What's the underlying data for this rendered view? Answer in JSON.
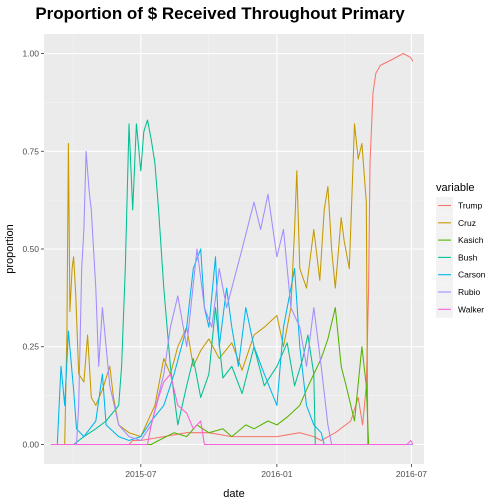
{
  "chart_data": {
    "type": "line",
    "title": "Proportion of $ Received Throughout Primary",
    "xlabel": "date",
    "ylabel": "proportion",
    "x_domain": [
      "2015-02-20",
      "2016-07-18"
    ],
    "ylim": [
      -0.05,
      1.05
    ],
    "x_ticks": [
      {
        "date": "2015-07-01",
        "label": "2015-07"
      },
      {
        "date": "2016-01-01",
        "label": "2016-01"
      },
      {
        "date": "2016-07-01",
        "label": "2016-07"
      }
    ],
    "x_minor": [
      "2015-04-01",
      "2015-10-01",
      "2016-04-01"
    ],
    "y_ticks": [
      {
        "value": 0,
        "label": "0.00"
      },
      {
        "value": 0.25,
        "label": "0.25"
      },
      {
        "value": 0.5,
        "label": "0.50"
      },
      {
        "value": 0.75,
        "label": "0.75"
      },
      {
        "value": 1,
        "label": "1.00"
      }
    ],
    "grid": true,
    "legend_title": "variable",
    "legend_position": "right",
    "series": [
      {
        "name": "Trump",
        "color": "#F8766D",
        "points": [
          [
            "2015-03-01",
            0
          ],
          [
            "2015-06-15",
            0
          ],
          [
            "2015-06-20",
            0.01
          ],
          [
            "2015-07-01",
            0.01
          ],
          [
            "2015-08-01",
            0.02
          ],
          [
            "2015-09-01",
            0.03
          ],
          [
            "2015-10-01",
            0.03
          ],
          [
            "2015-11-01",
            0.02
          ],
          [
            "2015-12-01",
            0.02
          ],
          [
            "2016-01-01",
            0.02
          ],
          [
            "2016-02-01",
            0.03
          ],
          [
            "2016-02-20",
            0.02
          ],
          [
            "2016-03-01",
            0.01
          ],
          [
            "2016-03-20",
            0.03
          ],
          [
            "2016-04-10",
            0.06
          ],
          [
            "2016-04-20",
            0.12
          ],
          [
            "2016-04-26",
            0.05
          ],
          [
            "2016-05-01",
            0.15
          ],
          [
            "2016-05-04",
            0.4
          ],
          [
            "2016-05-06",
            0.72
          ],
          [
            "2016-05-10",
            0.9
          ],
          [
            "2016-05-14",
            0.95
          ],
          [
            "2016-05-20",
            0.97
          ],
          [
            "2016-05-31",
            0.98
          ],
          [
            "2016-06-10",
            0.99
          ],
          [
            "2016-06-20",
            1.0
          ],
          [
            "2016-06-30",
            0.99
          ],
          [
            "2016-07-03",
            0.98
          ]
        ]
      },
      {
        "name": "Cruz",
        "color": "#C49A00",
        "points": [
          [
            "2015-03-01",
            0
          ],
          [
            "2015-03-20",
            0
          ],
          [
            "2015-03-23",
            0.28
          ],
          [
            "2015-03-25",
            0.77
          ],
          [
            "2015-03-27",
            0.34
          ],
          [
            "2015-03-30",
            0.45
          ],
          [
            "2015-04-01",
            0.48
          ],
          [
            "2015-04-04",
            0.38
          ],
          [
            "2015-04-08",
            0.18
          ],
          [
            "2015-04-15",
            0.16
          ],
          [
            "2015-04-20",
            0.28
          ],
          [
            "2015-04-25",
            0.12
          ],
          [
            "2015-05-01",
            0.1
          ],
          [
            "2015-05-10",
            0.14
          ],
          [
            "2015-05-20",
            0.2
          ],
          [
            "2015-05-25",
            0.12
          ],
          [
            "2015-06-01",
            0.05
          ],
          [
            "2015-06-15",
            0.03
          ],
          [
            "2015-07-01",
            0.02
          ],
          [
            "2015-07-20",
            0.1
          ],
          [
            "2015-08-01",
            0.22
          ],
          [
            "2015-08-10",
            0.18
          ],
          [
            "2015-08-20",
            0.25
          ],
          [
            "2015-09-01",
            0.3
          ],
          [
            "2015-09-10",
            0.2
          ],
          [
            "2015-09-20",
            0.24
          ],
          [
            "2015-10-01",
            0.27
          ],
          [
            "2015-10-15",
            0.22
          ],
          [
            "2015-11-01",
            0.26
          ],
          [
            "2015-11-15",
            0.19
          ],
          [
            "2015-12-01",
            0.28
          ],
          [
            "2015-12-15",
            0.3
          ],
          [
            "2016-01-01",
            0.33
          ],
          [
            "2016-01-10",
            0.25
          ],
          [
            "2016-01-20",
            0.35
          ],
          [
            "2016-01-25",
            0.55
          ],
          [
            "2016-01-28",
            0.7
          ],
          [
            "2016-02-01",
            0.45
          ],
          [
            "2016-02-10",
            0.4
          ],
          [
            "2016-02-20",
            0.55
          ],
          [
            "2016-02-28",
            0.42
          ],
          [
            "2016-03-05",
            0.6
          ],
          [
            "2016-03-10",
            0.66
          ],
          [
            "2016-03-15",
            0.5
          ],
          [
            "2016-03-20",
            0.4
          ],
          [
            "2016-03-28",
            0.58
          ],
          [
            "2016-04-01",
            0.52
          ],
          [
            "2016-04-08",
            0.45
          ],
          [
            "2016-04-15",
            0.82
          ],
          [
            "2016-04-20",
            0.73
          ],
          [
            "2016-04-25",
            0.77
          ],
          [
            "2016-05-01",
            0.62
          ],
          [
            "2016-05-03",
            0.0
          ],
          [
            "2016-07-03",
            0.0
          ]
        ]
      },
      {
        "name": "Kasich",
        "color": "#53B400",
        "points": [
          [
            "2015-03-01",
            0
          ],
          [
            "2015-07-15",
            0
          ],
          [
            "2015-07-25",
            0.01
          ],
          [
            "2015-08-15",
            0.03
          ],
          [
            "2015-09-01",
            0.02
          ],
          [
            "2015-09-15",
            0.05
          ],
          [
            "2015-10-01",
            0.03
          ],
          [
            "2015-10-20",
            0.04
          ],
          [
            "2015-11-01",
            0.02
          ],
          [
            "2015-11-20",
            0.05
          ],
          [
            "2015-12-01",
            0.04
          ],
          [
            "2015-12-20",
            0.06
          ],
          [
            "2016-01-01",
            0.05
          ],
          [
            "2016-01-15",
            0.07
          ],
          [
            "2016-02-01",
            0.1
          ],
          [
            "2016-02-10",
            0.14
          ],
          [
            "2016-02-20",
            0.18
          ],
          [
            "2016-03-01",
            0.22
          ],
          [
            "2016-03-10",
            0.27
          ],
          [
            "2016-03-20",
            0.35
          ],
          [
            "2016-03-28",
            0.2
          ],
          [
            "2016-04-05",
            0.14
          ],
          [
            "2016-04-15",
            0.06
          ],
          [
            "2016-04-25",
            0.25
          ],
          [
            "2016-05-01",
            0.15
          ],
          [
            "2016-05-04",
            0.0
          ],
          [
            "2016-07-03",
            0.0
          ]
        ]
      },
      {
        "name": "Bush",
        "color": "#00C094",
        "points": [
          [
            "2015-03-01",
            0
          ],
          [
            "2015-04-01",
            0
          ],
          [
            "2015-04-15",
            0.02
          ],
          [
            "2015-05-01",
            0.04
          ],
          [
            "2015-05-15",
            0.06
          ],
          [
            "2015-06-01",
            0.1
          ],
          [
            "2015-06-05",
            0.2
          ],
          [
            "2015-06-10",
            0.45
          ],
          [
            "2015-06-15",
            0.82
          ],
          [
            "2015-06-20",
            0.6
          ],
          [
            "2015-06-25",
            0.82
          ],
          [
            "2015-07-01",
            0.7
          ],
          [
            "2015-07-05",
            0.8
          ],
          [
            "2015-07-10",
            0.83
          ],
          [
            "2015-07-15",
            0.78
          ],
          [
            "2015-07-20",
            0.72
          ],
          [
            "2015-07-25",
            0.6
          ],
          [
            "2015-08-01",
            0.4
          ],
          [
            "2015-08-10",
            0.2
          ],
          [
            "2015-08-20",
            0.05
          ],
          [
            "2015-09-01",
            0.15
          ],
          [
            "2015-09-10",
            0.22
          ],
          [
            "2015-09-20",
            0.12
          ],
          [
            "2015-10-01",
            0.18
          ],
          [
            "2015-10-10",
            0.35
          ],
          [
            "2015-10-20",
            0.17
          ],
          [
            "2015-11-01",
            0.2
          ],
          [
            "2015-11-15",
            0.13
          ],
          [
            "2015-12-01",
            0.25
          ],
          [
            "2015-12-15",
            0.15
          ],
          [
            "2016-01-01",
            0.2
          ],
          [
            "2016-01-15",
            0.26
          ],
          [
            "2016-01-25",
            0.15
          ],
          [
            "2016-02-05",
            0.22
          ],
          [
            "2016-02-12",
            0.28
          ],
          [
            "2016-02-20",
            0.18
          ],
          [
            "2016-02-22",
            0.0
          ],
          [
            "2016-07-03",
            0.0
          ]
        ]
      },
      {
        "name": "Carson",
        "color": "#00B6EB",
        "points": [
          [
            "2015-03-01",
            0
          ],
          [
            "2015-03-10",
            0
          ],
          [
            "2015-03-15",
            0.2
          ],
          [
            "2015-03-20",
            0.1
          ],
          [
            "2015-03-25",
            0.29
          ],
          [
            "2015-04-01",
            0.14
          ],
          [
            "2015-04-05",
            0.04
          ],
          [
            "2015-04-15",
            0.02
          ],
          [
            "2015-05-01",
            0.06
          ],
          [
            "2015-05-10",
            0.18
          ],
          [
            "2015-05-15",
            0.05
          ],
          [
            "2015-06-01",
            0.02
          ],
          [
            "2015-06-15",
            0.01
          ],
          [
            "2015-07-01",
            0.02
          ],
          [
            "2015-07-15",
            0.06
          ],
          [
            "2015-08-01",
            0.1
          ],
          [
            "2015-08-15",
            0.18
          ],
          [
            "2015-09-01",
            0.3
          ],
          [
            "2015-09-10",
            0.45
          ],
          [
            "2015-09-20",
            0.5
          ],
          [
            "2015-09-25",
            0.35
          ],
          [
            "2015-10-01",
            0.3
          ],
          [
            "2015-10-10",
            0.48
          ],
          [
            "2015-10-15",
            0.25
          ],
          [
            "2015-10-25",
            0.4
          ],
          [
            "2015-11-01",
            0.3
          ],
          [
            "2015-11-10",
            0.2
          ],
          [
            "2015-11-20",
            0.35
          ],
          [
            "2015-12-01",
            0.25
          ],
          [
            "2015-12-15",
            0.18
          ],
          [
            "2016-01-01",
            0.1
          ],
          [
            "2016-01-10",
            0.3
          ],
          [
            "2016-01-20",
            0.4
          ],
          [
            "2016-01-25",
            0.45
          ],
          [
            "2016-02-01",
            0.25
          ],
          [
            "2016-02-10",
            0.1
          ],
          [
            "2016-02-20",
            0.05
          ],
          [
            "2016-03-01",
            0.03
          ],
          [
            "2016-03-05",
            0.0
          ],
          [
            "2016-07-03",
            0.0
          ]
        ]
      },
      {
        "name": "Rubio",
        "color": "#A58AFF",
        "points": [
          [
            "2015-03-01",
            0
          ],
          [
            "2015-04-05",
            0
          ],
          [
            "2015-04-08",
            0.1
          ],
          [
            "2015-04-12",
            0.45
          ],
          [
            "2015-04-15",
            0.55
          ],
          [
            "2015-04-18",
            0.75
          ],
          [
            "2015-04-22",
            0.65
          ],
          [
            "2015-04-25",
            0.6
          ],
          [
            "2015-05-01",
            0.4
          ],
          [
            "2015-05-05",
            0.2
          ],
          [
            "2015-05-10",
            0.35
          ],
          [
            "2015-05-15",
            0.25
          ],
          [
            "2015-05-20",
            0.15
          ],
          [
            "2015-06-01",
            0.05
          ],
          [
            "2015-06-15",
            0.02
          ],
          [
            "2015-07-01",
            0.01
          ],
          [
            "2015-07-15",
            0.05
          ],
          [
            "2015-08-01",
            0.18
          ],
          [
            "2015-08-10",
            0.3
          ],
          [
            "2015-08-20",
            0.38
          ],
          [
            "2015-09-01",
            0.25
          ],
          [
            "2015-09-15",
            0.5
          ],
          [
            "2015-09-25",
            0.35
          ],
          [
            "2015-10-05",
            0.3
          ],
          [
            "2015-10-15",
            0.45
          ],
          [
            "2015-10-25",
            0.35
          ],
          [
            "2015-11-01",
            0.4
          ],
          [
            "2015-11-15",
            0.5
          ],
          [
            "2015-12-01",
            0.62
          ],
          [
            "2015-12-10",
            0.55
          ],
          [
            "2015-12-20",
            0.64
          ],
          [
            "2016-01-01",
            0.48
          ],
          [
            "2016-01-10",
            0.55
          ],
          [
            "2016-01-20",
            0.35
          ],
          [
            "2016-02-01",
            0.3
          ],
          [
            "2016-02-10",
            0.2
          ],
          [
            "2016-02-20",
            0.35
          ],
          [
            "2016-03-01",
            0.2
          ],
          [
            "2016-03-10",
            0.05
          ],
          [
            "2016-03-15",
            0.0
          ],
          [
            "2016-07-03",
            0.0
          ]
        ]
      },
      {
        "name": "Walker",
        "color": "#FB61D7",
        "points": [
          [
            "2015-03-01",
            0
          ],
          [
            "2015-07-10",
            0
          ],
          [
            "2015-07-15",
            0.05
          ],
          [
            "2015-07-25",
            0.12
          ],
          [
            "2015-08-01",
            0.16
          ],
          [
            "2015-08-10",
            0.18
          ],
          [
            "2015-08-20",
            0.1
          ],
          [
            "2015-09-01",
            0.08
          ],
          [
            "2015-09-10",
            0.04
          ],
          [
            "2015-09-20",
            0.06
          ],
          [
            "2015-09-25",
            0.0
          ],
          [
            "2016-06-25",
            0.0
          ],
          [
            "2016-06-30",
            0.01
          ],
          [
            "2016-07-03",
            0.0
          ]
        ]
      }
    ]
  }
}
